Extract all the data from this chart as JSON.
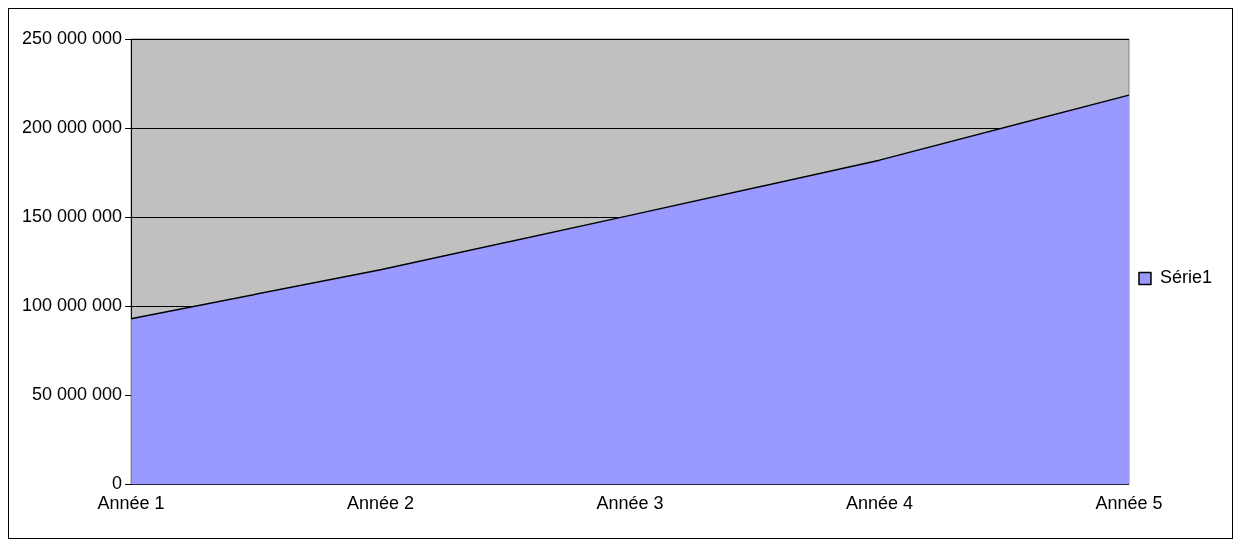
{
  "chart_data": {
    "type": "area",
    "categories": [
      "Année 1",
      "Année 2",
      "Année 3",
      "Année 4",
      "Année 5"
    ],
    "series": [
      {
        "name": "Série1",
        "color": "#9999ff",
        "values": [
          93000000,
          120500000,
          151000000,
          182000000,
          218500000
        ]
      }
    ],
    "ylim": [
      0,
      250000000
    ],
    "yticks": [
      {
        "value": 0,
        "label": "0"
      },
      {
        "value": 50000000,
        "label": "50 000 000"
      },
      {
        "value": 100000000,
        "label": "100 000 000"
      },
      {
        "value": 150000000,
        "label": "150 000 000"
      },
      {
        "value": 200000000,
        "label": "200 000 000"
      },
      {
        "value": 250000000,
        "label": "250 000 000"
      }
    ],
    "grid": "y",
    "legend": "right"
  }
}
